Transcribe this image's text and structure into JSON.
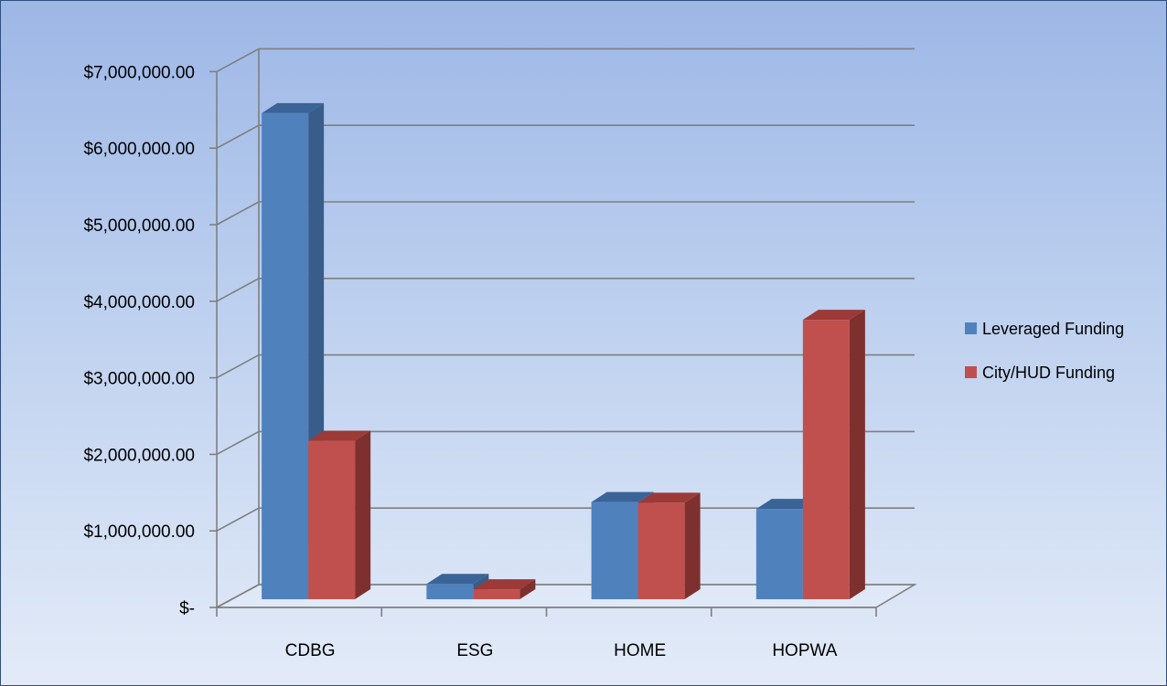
{
  "chart_data": {
    "type": "bar",
    "categories": [
      "CDBG",
      "ESG",
      "HOME",
      "HOPWA"
    ],
    "series": [
      {
        "name": "Leveraged Funding",
        "values": [
          6350000,
          200000,
          1270000,
          1180000
        ]
      },
      {
        "name": "City/HUD Funding",
        "values": [
          2070000,
          130000,
          1260000,
          3650000
        ]
      }
    ],
    "ylim": [
      0,
      7000000
    ],
    "y_ticks": [
      0,
      1000000,
      2000000,
      3000000,
      4000000,
      5000000,
      6000000,
      7000000
    ],
    "y_tick_labels": [
      "$-",
      "$1,000,000.00",
      "$2,000,000.00",
      "$3,000,000.00",
      "$4,000,000.00",
      "$5,000,000.00",
      "$6,000,000.00",
      "$7,000,000.00"
    ],
    "grid": true,
    "legend_position": "right",
    "style": "3d-clustered-column"
  },
  "colors": {
    "series": [
      "#4f81bd",
      "#c0504d"
    ],
    "series_side": [
      "#385d8a",
      "#7e302e"
    ],
    "series_top": [
      "#3a6398",
      "#9b3a37"
    ],
    "grid": "#7f7f7f"
  }
}
